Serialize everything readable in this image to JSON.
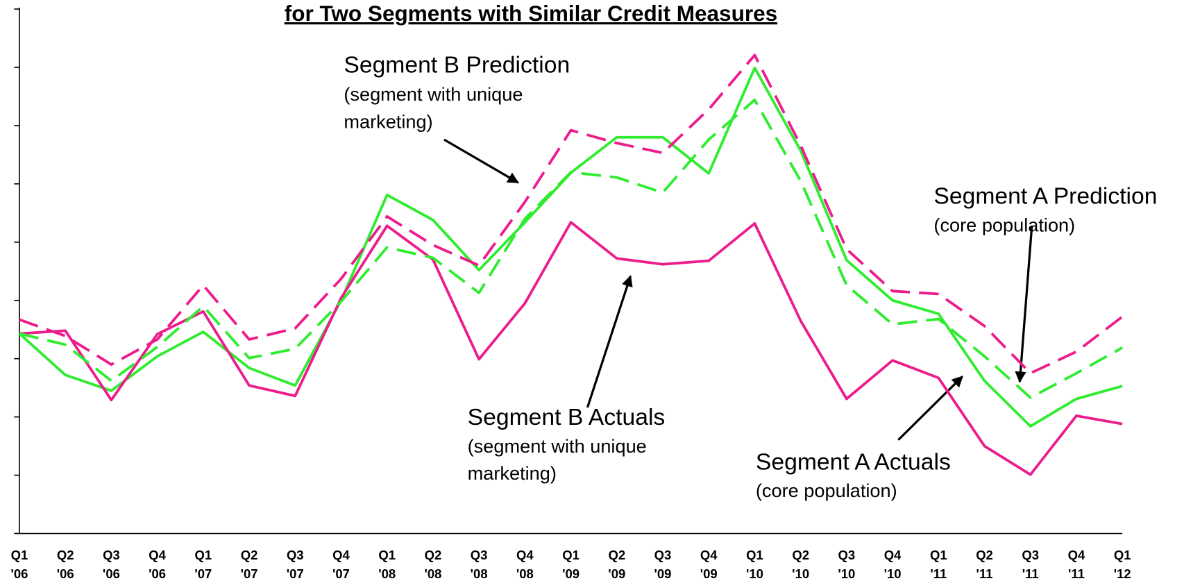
{
  "chart_data": {
    "type": "line",
    "title": "for Two Segments with Similar Credit Measures",
    "categories": [
      [
        "Q1",
        "'06"
      ],
      [
        "Q2",
        "'06"
      ],
      [
        "Q3",
        "'06"
      ],
      [
        "Q4",
        "'06"
      ],
      [
        "Q1",
        "'07"
      ],
      [
        "Q2",
        "'07"
      ],
      [
        "Q3",
        "'07"
      ],
      [
        "Q4",
        "'07"
      ],
      [
        "Q1",
        "'08"
      ],
      [
        "Q2",
        "'08"
      ],
      [
        "Q3",
        "'08"
      ],
      [
        "Q4",
        "'08"
      ],
      [
        "Q1",
        "'09"
      ],
      [
        "Q2",
        "'09"
      ],
      [
        "Q3",
        "'09"
      ],
      [
        "Q4",
        "'09"
      ],
      [
        "Q1",
        "'10"
      ],
      [
        "Q2",
        "'10"
      ],
      [
        "Q3",
        "'10"
      ],
      [
        "Q4",
        "'10"
      ],
      [
        "Q1",
        "'11"
      ],
      [
        "Q2",
        "'11"
      ],
      [
        "Q3",
        "'11"
      ],
      [
        "Q4",
        "'11"
      ],
      [
        "Q1",
        "'12"
      ]
    ],
    "ylim": [
      0,
      9
    ],
    "yticks": [
      0,
      1,
      2,
      3,
      4,
      5,
      6,
      7,
      8,
      9
    ],
    "series": [
      {
        "name": "Segment A Actuals",
        "note": [
          "(core population)"
        ],
        "color": "#2fec2f",
        "dash": false,
        "values": [
          3.43,
          2.72,
          2.45,
          3.04,
          3.46,
          2.84,
          2.54,
          4.0,
          5.81,
          5.38,
          4.52,
          5.34,
          6.19,
          6.8,
          6.8,
          6.18,
          7.99,
          6.57,
          4.69,
          4.0,
          3.77,
          2.62,
          1.84,
          2.31,
          2.53
        ]
      },
      {
        "name": "Segment B Actuals",
        "note": [
          "(segment with unique",
          "marketing)"
        ],
        "color": "#ec1c8c",
        "dash": false,
        "values": [
          3.43,
          3.48,
          2.29,
          3.42,
          3.81,
          2.54,
          2.36,
          4.04,
          5.28,
          4.7,
          2.99,
          3.95,
          5.34,
          4.72,
          4.62,
          4.68,
          5.32,
          3.65,
          2.31,
          2.97,
          2.67,
          1.5,
          1.01,
          2.02,
          1.88
        ]
      },
      {
        "name": "Segment A Prediction",
        "note": [
          "(core population)"
        ],
        "color": "#2fec2f",
        "dash": true,
        "values": [
          3.43,
          3.24,
          2.62,
          3.2,
          3.9,
          3.01,
          3.17,
          3.98,
          4.91,
          4.73,
          4.13,
          5.4,
          6.2,
          6.11,
          5.85,
          6.76,
          7.44,
          6.05,
          4.26,
          3.59,
          3.68,
          3.04,
          2.33,
          2.75,
          3.19
        ]
      },
      {
        "name": "Segment B Prediction",
        "note": [
          "(segment with unique",
          "marketing)"
        ],
        "color": "#ec1c8c",
        "dash": true,
        "values": [
          3.67,
          3.39,
          2.9,
          3.33,
          4.26,
          3.33,
          3.52,
          4.37,
          5.44,
          4.95,
          4.6,
          5.69,
          6.92,
          6.7,
          6.53,
          7.28,
          8.21,
          6.66,
          4.88,
          4.16,
          4.11,
          3.56,
          2.75,
          3.12,
          3.72
        ]
      }
    ]
  }
}
